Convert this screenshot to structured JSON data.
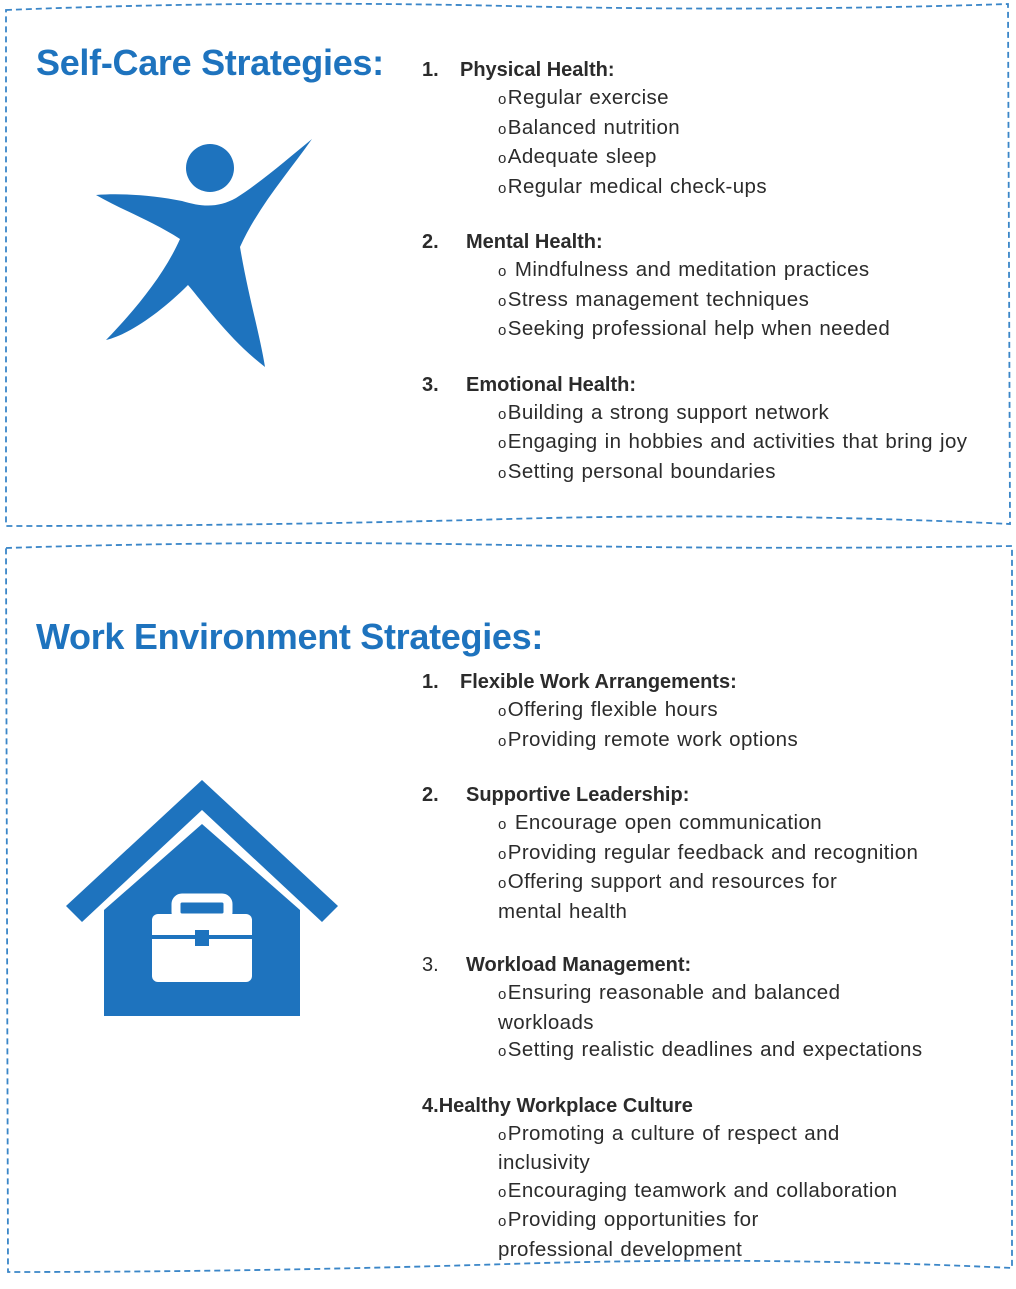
{
  "colors": {
    "accent": "#1e73be",
    "border": "#3a86c8",
    "text": "#2b2b2b"
  },
  "bullet_glyph": "o",
  "self_care": {
    "title": "Self-Care Strategies:",
    "icon": "person-star-icon",
    "sections": [
      {
        "number": "1.",
        "heading": "Physical Health:",
        "items": [
          "Regular exercise",
          "Balanced nutrition",
          "Adequate sleep",
          "Regular medical check-ups"
        ]
      },
      {
        "number": "2.",
        "heading": "Mental Health:",
        "items": [
          " Mindfulness and meditation practices",
          "Stress management techniques",
          "Seeking professional help when needed"
        ]
      },
      {
        "number": "3.",
        "heading": "Emotional Health:",
        "items": [
          "Building a strong support network",
          "Engaging in hobbies and activities that bring joy",
          "Setting personal boundaries"
        ]
      }
    ]
  },
  "work_env": {
    "title": "Work Environment Strategies:",
    "icon": "house-briefcase-icon",
    "sections": [
      {
        "number": "1.",
        "heading": "Flexible Work Arrangements:",
        "items": [
          "Offering flexible hours",
          "Providing remote work options"
        ]
      },
      {
        "number": "2.",
        "heading": "Supportive Leadership:",
        "items": [
          " Encourage open communication",
          "Providing regular feedback and recognition",
          "Offering support and resources for mental health"
        ]
      },
      {
        "number": "3.",
        "heading": "Workload Management:",
        "items": [
          "Ensuring reasonable and balanced workloads",
          "Setting realistic deadlines and expectations"
        ]
      },
      {
        "number": "4.",
        "heading": "Healthy Workplace Culture",
        "items": [
          "Promoting a culture of respect and inclusivity",
          "Encouraging teamwork and collaboration",
          "Providing opportunities for professional development"
        ]
      }
    ]
  }
}
